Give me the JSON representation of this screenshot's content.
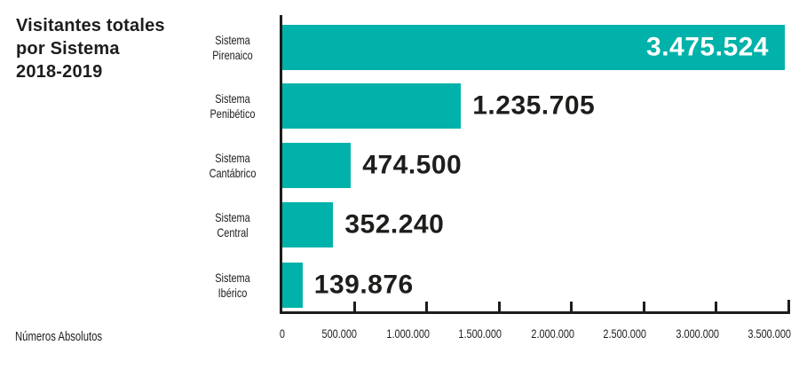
{
  "title": "Visitantes totales\npor Sistema\n2018-2019",
  "footer_caption": "Números Absolutos",
  "colors": {
    "bar": "#00b2a9",
    "text": "#1d1d1b",
    "value_inside": "#ffffff"
  },
  "chart_data": {
    "type": "bar",
    "orientation": "horizontal",
    "title": "Visitantes totales por Sistema 2018-2019",
    "categories": [
      "Sistema\nPirenaico",
      "Sistema\nPenibético",
      "Sistema\nCantábrico",
      "Sistema\nCentral",
      "Sistema\nIbérico"
    ],
    "values": [
      3475524,
      1235705,
      474500,
      352240,
      139876
    ],
    "value_labels": [
      "3.475.524",
      "1.235.705",
      "474.500",
      "352.240",
      "139.876"
    ],
    "value_label_positions": [
      "inside-right",
      "outside",
      "outside",
      "outside",
      "outside"
    ],
    "xlabel": "Números Absolutos",
    "ylabel": "",
    "xlim": [
      0,
      3500000
    ],
    "x_ticks": [
      0,
      500000,
      1000000,
      1500000,
      2000000,
      2500000,
      3000000,
      3500000
    ],
    "x_tick_labels": [
      "0",
      "500.000",
      "1.000.000",
      "1.500.000",
      "2.000.000",
      "2.500.000",
      "3.000.000",
      "3.500.000"
    ],
    "grid": false,
    "legend": false,
    "bar_color": "#00b2a9"
  }
}
